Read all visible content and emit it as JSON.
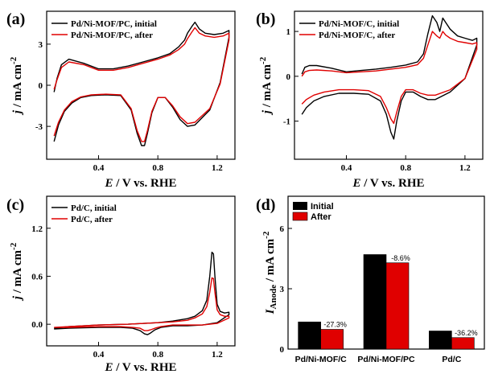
{
  "chart_data": [
    {
      "panel": "(a)",
      "type": "line",
      "xlabel_prefix": "E",
      "xlabel_suffix": " / V vs. RHE",
      "ylabel_prefix": "j",
      "ylabel_suffix": " / mA cm",
      "ylabel_sup": "-2",
      "xlim": [
        0.05,
        1.32
      ],
      "ylim": [
        -5.4,
        5.4
      ],
      "xticks": [
        0.4,
        0.8,
        1.2
      ],
      "xticklabels": [
        "0.4",
        "0.8",
        "1.2"
      ],
      "yticks": [
        -3,
        0,
        3
      ],
      "yticklabels": [
        "-3",
        "0",
        "3"
      ],
      "legend_position": "top-left",
      "series": [
        {
          "name": "Pd/Ni-MOF/PC, initial",
          "color": "#000000",
          "x": [
            0.1,
            0.12,
            0.15,
            0.2,
            0.3,
            0.4,
            0.5,
            0.6,
            0.7,
            0.8,
            0.88,
            0.94,
            0.98,
            1.0,
            1.03,
            1.05,
            1.08,
            1.12,
            1.18,
            1.24,
            1.28,
            1.28,
            1.22,
            1.15,
            1.05,
            1.0,
            0.95,
            0.9,
            0.85,
            0.8,
            0.76,
            0.73,
            0.71,
            0.69,
            0.66,
            0.62,
            0.55,
            0.45,
            0.35,
            0.28,
            0.22,
            0.17,
            0.13,
            0.1
          ],
          "y": [
            -0.5,
            0.5,
            1.5,
            1.9,
            1.6,
            1.2,
            1.2,
            1.4,
            1.7,
            2.0,
            2.3,
            2.8,
            3.3,
            3.8,
            4.3,
            4.6,
            4.1,
            3.8,
            3.7,
            3.8,
            4.0,
            3.5,
            0.2,
            -1.8,
            -2.9,
            -3.0,
            -2.5,
            -1.6,
            -0.9,
            -0.9,
            -2.0,
            -3.5,
            -4.4,
            -4.4,
            -3.5,
            -1.8,
            -0.75,
            -0.7,
            -0.75,
            -0.9,
            -1.3,
            -1.9,
            -2.9,
            -4.1
          ]
        },
        {
          "name": "Pd/Ni-MOF/PC, after",
          "color": "#e00000",
          "x": [
            0.1,
            0.12,
            0.15,
            0.2,
            0.3,
            0.4,
            0.5,
            0.6,
            0.7,
            0.8,
            0.88,
            0.94,
            0.98,
            1.0,
            1.03,
            1.05,
            1.08,
            1.12,
            1.18,
            1.24,
            1.28,
            1.28,
            1.22,
            1.15,
            1.05,
            1.0,
            0.95,
            0.9,
            0.85,
            0.8,
            0.76,
            0.73,
            0.71,
            0.69,
            0.66,
            0.62,
            0.55,
            0.45,
            0.35,
            0.28,
            0.22,
            0.17,
            0.13,
            0.1
          ],
          "y": [
            -0.3,
            0.4,
            1.3,
            1.7,
            1.5,
            1.1,
            1.1,
            1.3,
            1.6,
            1.9,
            2.2,
            2.6,
            3.0,
            3.4,
            3.9,
            4.2,
            3.8,
            3.6,
            3.5,
            3.6,
            3.8,
            3.3,
            0.1,
            -1.7,
            -2.7,
            -2.8,
            -2.3,
            -1.5,
            -0.9,
            -0.9,
            -1.9,
            -3.3,
            -4.1,
            -4.1,
            -3.3,
            -1.7,
            -0.7,
            -0.65,
            -0.7,
            -0.85,
            -1.2,
            -1.8,
            -2.7,
            -3.7
          ]
        }
      ]
    },
    {
      "panel": "(b)",
      "type": "line",
      "xlabel_prefix": "E",
      "xlabel_suffix": " / V vs. RHE",
      "ylabel_prefix": "j",
      "ylabel_suffix": " / mA cm",
      "ylabel_sup": "-2",
      "xlim": [
        0.05,
        1.32
      ],
      "ylim": [
        -1.85,
        1.45
      ],
      "xticks": [
        0.4,
        0.8,
        1.2
      ],
      "xticklabels": [
        "0.4",
        "0.8",
        "1.2"
      ],
      "yticks": [
        -1,
        0,
        1
      ],
      "yticklabels": [
        "-1",
        "0",
        "1"
      ],
      "legend_position": "top-left",
      "series": [
        {
          "name": "Pd/Ni-MOF/C, initial",
          "color": "#000000",
          "x": [
            0.1,
            0.12,
            0.15,
            0.2,
            0.3,
            0.4,
            0.5,
            0.6,
            0.7,
            0.8,
            0.88,
            0.92,
            0.95,
            0.98,
            1.01,
            1.03,
            1.05,
            1.07,
            1.1,
            1.15,
            1.2,
            1.25,
            1.28,
            1.28,
            1.2,
            1.1,
            1.0,
            0.95,
            0.9,
            0.85,
            0.8,
            0.77,
            0.74,
            0.72,
            0.7,
            0.67,
            0.63,
            0.55,
            0.45,
            0.35,
            0.25,
            0.18,
            0.13,
            0.1
          ],
          "y": [
            0.05,
            0.2,
            0.24,
            0.24,
            0.18,
            0.1,
            0.13,
            0.16,
            0.2,
            0.25,
            0.32,
            0.5,
            0.95,
            1.35,
            1.2,
            1.0,
            1.3,
            1.2,
            1.05,
            0.9,
            0.85,
            0.8,
            0.85,
            0.7,
            -0.05,
            -0.35,
            -0.52,
            -0.52,
            -0.45,
            -0.35,
            -0.35,
            -0.55,
            -1.0,
            -1.4,
            -1.25,
            -0.85,
            -0.55,
            -0.4,
            -0.38,
            -0.38,
            -0.45,
            -0.55,
            -0.7,
            -0.85
          ]
        },
        {
          "name": "Pd/Ni-MOF/C, after",
          "color": "#e00000",
          "x": [
            0.1,
            0.12,
            0.15,
            0.2,
            0.3,
            0.4,
            0.5,
            0.6,
            0.7,
            0.8,
            0.88,
            0.92,
            0.95,
            0.98,
            1.01,
            1.03,
            1.05,
            1.07,
            1.1,
            1.15,
            1.2,
            1.25,
            1.28,
            1.28,
            1.2,
            1.1,
            1.0,
            0.95,
            0.9,
            0.85,
            0.8,
            0.77,
            0.74,
            0.72,
            0.7,
            0.67,
            0.63,
            0.55,
            0.45,
            0.35,
            0.25,
            0.18,
            0.13,
            0.1
          ],
          "y": [
            0.0,
            0.1,
            0.13,
            0.14,
            0.12,
            0.08,
            0.1,
            0.12,
            0.16,
            0.2,
            0.26,
            0.4,
            0.7,
            1.0,
            0.9,
            0.85,
            1.0,
            0.92,
            0.85,
            0.78,
            0.75,
            0.72,
            0.75,
            0.6,
            -0.05,
            -0.3,
            -0.42,
            -0.42,
            -0.38,
            -0.3,
            -0.3,
            -0.45,
            -0.8,
            -1.05,
            -0.95,
            -0.7,
            -0.45,
            -0.32,
            -0.3,
            -0.3,
            -0.35,
            -0.42,
            -0.52,
            -0.62
          ]
        }
      ]
    },
    {
      "panel": "(c)",
      "type": "line",
      "xlabel_prefix": "E",
      "xlabel_suffix": " / V vs. RHE",
      "ylabel_prefix": "j",
      "ylabel_suffix": " / mA cm",
      "ylabel_sup": "-2",
      "xlim": [
        0.05,
        1.32
      ],
      "ylim": [
        -0.27,
        1.6
      ],
      "xticks": [
        0.4,
        0.8,
        1.2
      ],
      "xticklabels": [
        "0.4",
        "0.8",
        "1.2"
      ],
      "yticks": [
        0.0,
        0.6,
        1.2
      ],
      "yticklabels": [
        "0.0",
        "0.6",
        "1.2"
      ],
      "legend_position": "top-left",
      "series": [
        {
          "name": "Pd/C, initial",
          "color": "#000000",
          "x": [
            0.1,
            0.2,
            0.4,
            0.6,
            0.8,
            0.9,
            1.0,
            1.05,
            1.1,
            1.13,
            1.15,
            1.165,
            1.175,
            1.185,
            1.2,
            1.22,
            1.25,
            1.28,
            1.28,
            1.2,
            1.1,
            1.0,
            0.9,
            0.82,
            0.78,
            0.75,
            0.73,
            0.71,
            0.68,
            0.63,
            0.55,
            0.4,
            0.2,
            0.1
          ],
          "y": [
            -0.05,
            -0.03,
            -0.01,
            0.0,
            0.02,
            0.04,
            0.07,
            0.1,
            0.17,
            0.3,
            0.6,
            0.9,
            0.88,
            0.6,
            0.25,
            0.16,
            0.14,
            0.15,
            0.12,
            0.02,
            -0.01,
            -0.02,
            -0.02,
            -0.04,
            -0.07,
            -0.11,
            -0.13,
            -0.12,
            -0.08,
            -0.05,
            -0.04,
            -0.04,
            -0.05,
            -0.06
          ]
        },
        {
          "name": "Pd/C, after",
          "color": "#e00000",
          "x": [
            0.1,
            0.2,
            0.4,
            0.6,
            0.8,
            0.9,
            1.0,
            1.05,
            1.1,
            1.13,
            1.15,
            1.165,
            1.175,
            1.185,
            1.2,
            1.22,
            1.25,
            1.28,
            1.28,
            1.2,
            1.1,
            1.0,
            0.9,
            0.82,
            0.78,
            0.75,
            0.73,
            0.71,
            0.68,
            0.63,
            0.55,
            0.4,
            0.2,
            0.1
          ],
          "y": [
            -0.04,
            -0.03,
            -0.01,
            0.0,
            0.02,
            0.03,
            0.05,
            0.08,
            0.13,
            0.22,
            0.4,
            0.58,
            0.57,
            0.4,
            0.18,
            0.12,
            0.1,
            0.1,
            0.08,
            0.01,
            -0.01,
            -0.01,
            -0.01,
            -0.03,
            -0.05,
            -0.07,
            -0.08,
            -0.08,
            -0.05,
            -0.04,
            -0.03,
            -0.03,
            -0.04,
            -0.04
          ]
        }
      ]
    },
    {
      "panel": "(d)",
      "type": "bar",
      "ylabel_main": "I",
      "ylabel_sub": "Anode",
      "ylabel_suffix": " / mA cm",
      "ylabel_sup": "-2",
      "ylim": [
        0,
        7.6
      ],
      "yticks": [
        0,
        3,
        6
      ],
      "yticklabels": [
        "0",
        "3",
        "6"
      ],
      "categories": [
        "Pd/Ni-MOF/C",
        "Pd/Ni-MOF/PC",
        "Pd/C"
      ],
      "legend_position": "top-left",
      "series": [
        {
          "name": "Initial",
          "color": "#000000",
          "values": [
            1.35,
            4.7,
            0.9
          ]
        },
        {
          "name": "After",
          "color": "#e00000",
          "values": [
            0.98,
            4.29,
            0.57
          ]
        }
      ],
      "annotations": [
        "-27.3%",
        "-8.6%",
        "-36.2%"
      ]
    }
  ]
}
